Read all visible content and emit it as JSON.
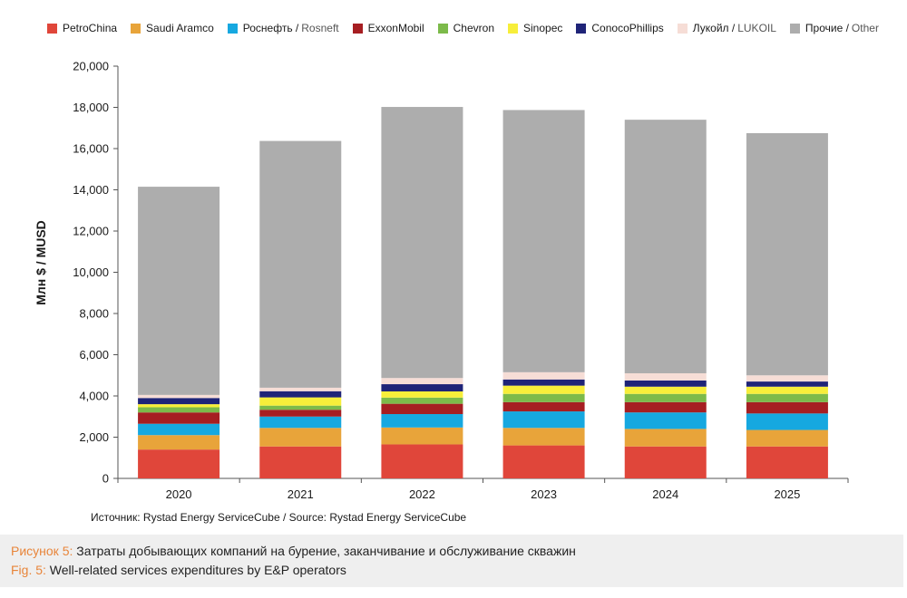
{
  "chart_data": {
    "type": "bar",
    "stacked": true,
    "categories": [
      "2020",
      "2021",
      "2022",
      "2023",
      "2024",
      "2025"
    ],
    "series": [
      {
        "name": "PetroChina",
        "name_sub": "",
        "color": "#e0463a",
        "values": [
          1400,
          1550,
          1650,
          1600,
          1550,
          1550
        ]
      },
      {
        "name": "Saudi Aramco",
        "name_sub": "",
        "color": "#e8a43a",
        "values": [
          700,
          900,
          820,
          850,
          850,
          800
        ]
      },
      {
        "name": "Роснефть /",
        "name_sub": "Rosneft",
        "color": "#16a8e0",
        "values": [
          550,
          550,
          650,
          800,
          800,
          800
        ]
      },
      {
        "name": "ExxonMobil",
        "name_sub": "",
        "color": "#a61e22",
        "values": [
          550,
          330,
          500,
          450,
          500,
          550
        ]
      },
      {
        "name": "Chevron",
        "name_sub": "",
        "color": "#7cba4a",
        "values": [
          250,
          200,
          300,
          400,
          400,
          400
        ]
      },
      {
        "name": "Sinopec",
        "name_sub": "",
        "color": "#f7ee3a",
        "values": [
          150,
          400,
          300,
          400,
          350,
          350
        ]
      },
      {
        "name": "ConocoPhillips",
        "name_sub": "",
        "color": "#1f2478",
        "values": [
          300,
          300,
          350,
          300,
          300,
          250
        ]
      },
      {
        "name": "Лукойл /",
        "name_sub": "LUKOIL",
        "color": "#f6ddd6",
        "values": [
          150,
          170,
          300,
          350,
          350,
          300
        ]
      },
      {
        "name": "Прочие /",
        "name_sub": "Other",
        "color": "#adadad",
        "values": [
          10100,
          11970,
          13150,
          12720,
          12300,
          11750
        ]
      }
    ],
    "ylim": [
      0,
      20000
    ],
    "yticks": [
      "0",
      "2,000",
      "4,000",
      "6,000",
      "8,000",
      "10,000",
      "12,000",
      "14,000",
      "16,000",
      "18,000",
      "20,000"
    ],
    "ytick_values": [
      0,
      2000,
      4000,
      6000,
      8000,
      10000,
      12000,
      14000,
      16000,
      18000,
      20000
    ],
    "ylabel": "Млн $ / MUSD",
    "xlabel": "",
    "title": "",
    "legend_position": "top"
  },
  "source": {
    "ru": "Источник: Rystad Energy ServiceCube /",
    "en": "Source: Rystad Energy ServiceCube"
  },
  "caption": {
    "ru_prefix": "Рисунок 5:",
    "ru_text": "Затраты добывающих компаний на бурение, заканчивание и обслуживание скважин",
    "en_prefix": "Fig. 5:",
    "en_text": "Well-related services expenditures by E&P operators"
  }
}
